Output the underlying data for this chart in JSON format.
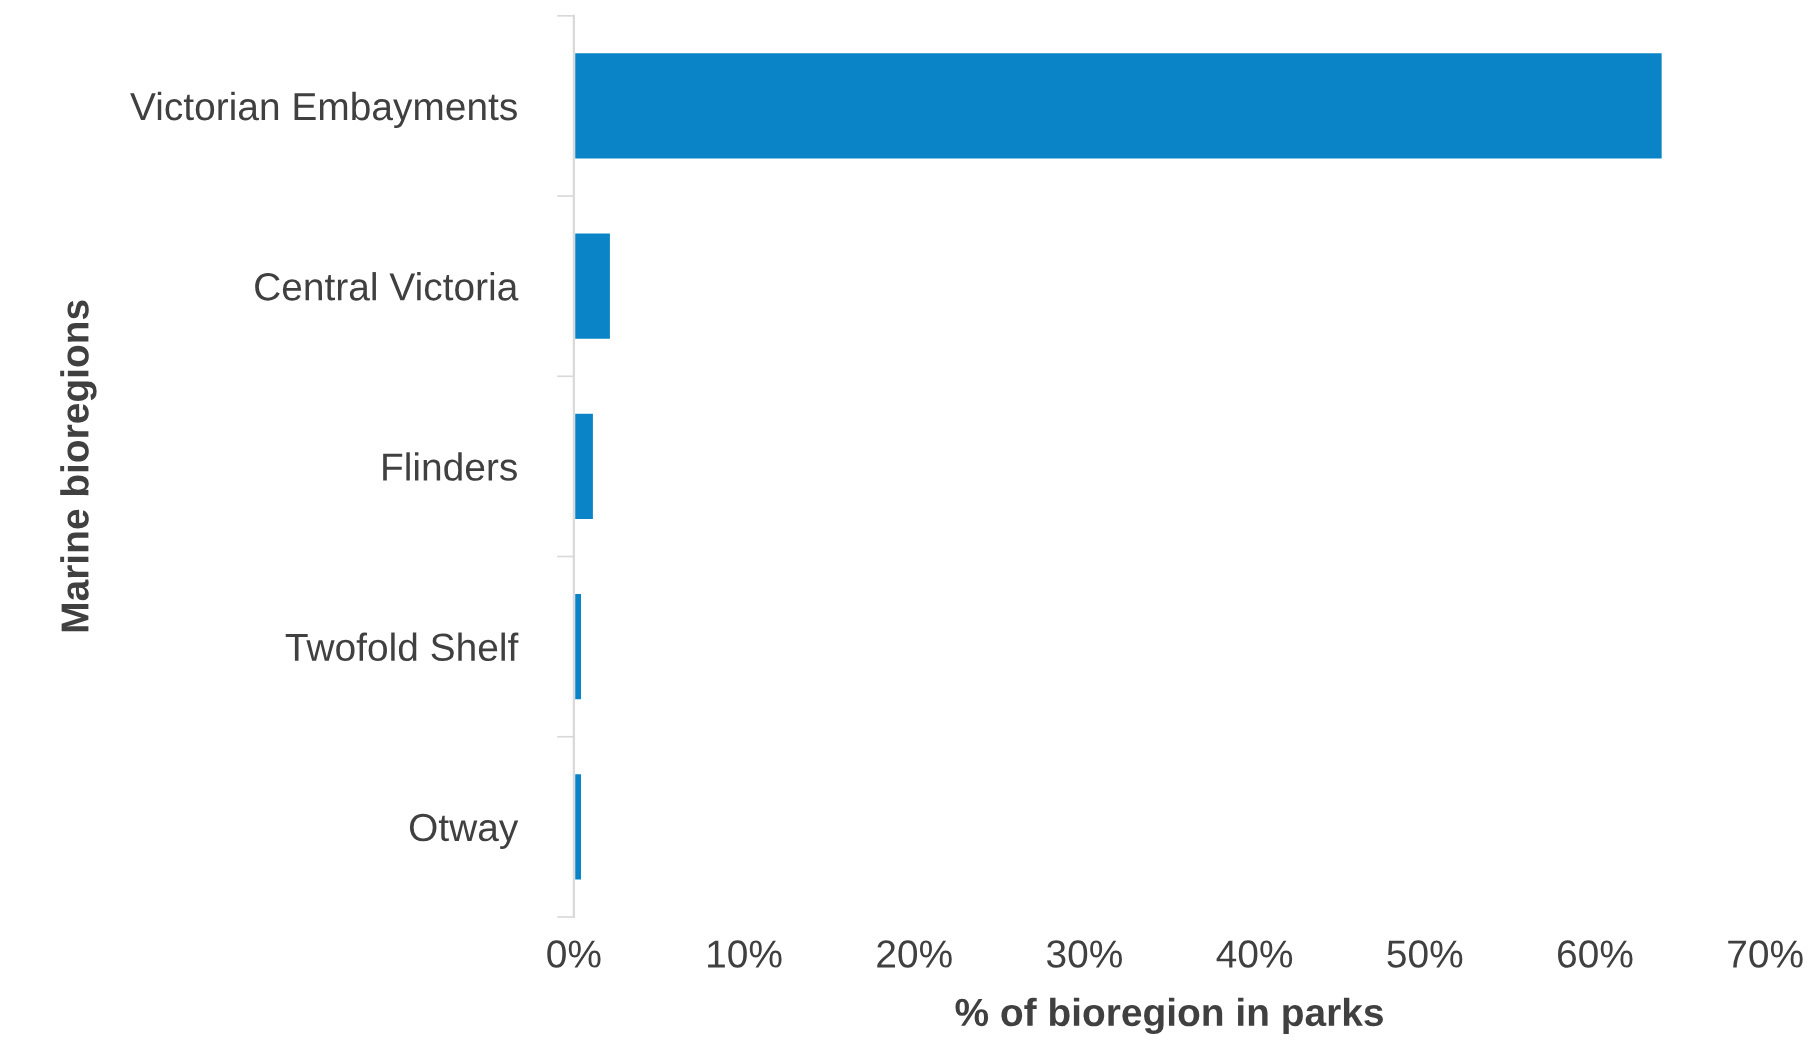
{
  "chart_data": {
    "type": "bar",
    "orientation": "horizontal",
    "xlabel": "% of bioregion in parks",
    "ylabel": "Marine bioregions",
    "categories": [
      "Victorian Embayments",
      "Central Victoria",
      "Flinders",
      "Twofold Shelf",
      "Otway"
    ],
    "values": [
      64.0,
      2.2,
      1.2,
      0.5,
      0.5
    ],
    "color": "#0a84c6",
    "xlim": [
      0,
      70
    ],
    "xticks": [
      {
        "value": 0,
        "label": "0%"
      },
      {
        "value": 10,
        "label": "10%"
      },
      {
        "value": 20,
        "label": "20%"
      },
      {
        "value": 30,
        "label": "30%"
      },
      {
        "value": 40,
        "label": "40%"
      },
      {
        "value": 50,
        "label": "50%"
      },
      {
        "value": 60,
        "label": "60%"
      },
      {
        "value": 70,
        "label": "70%"
      }
    ],
    "grid": false
  }
}
